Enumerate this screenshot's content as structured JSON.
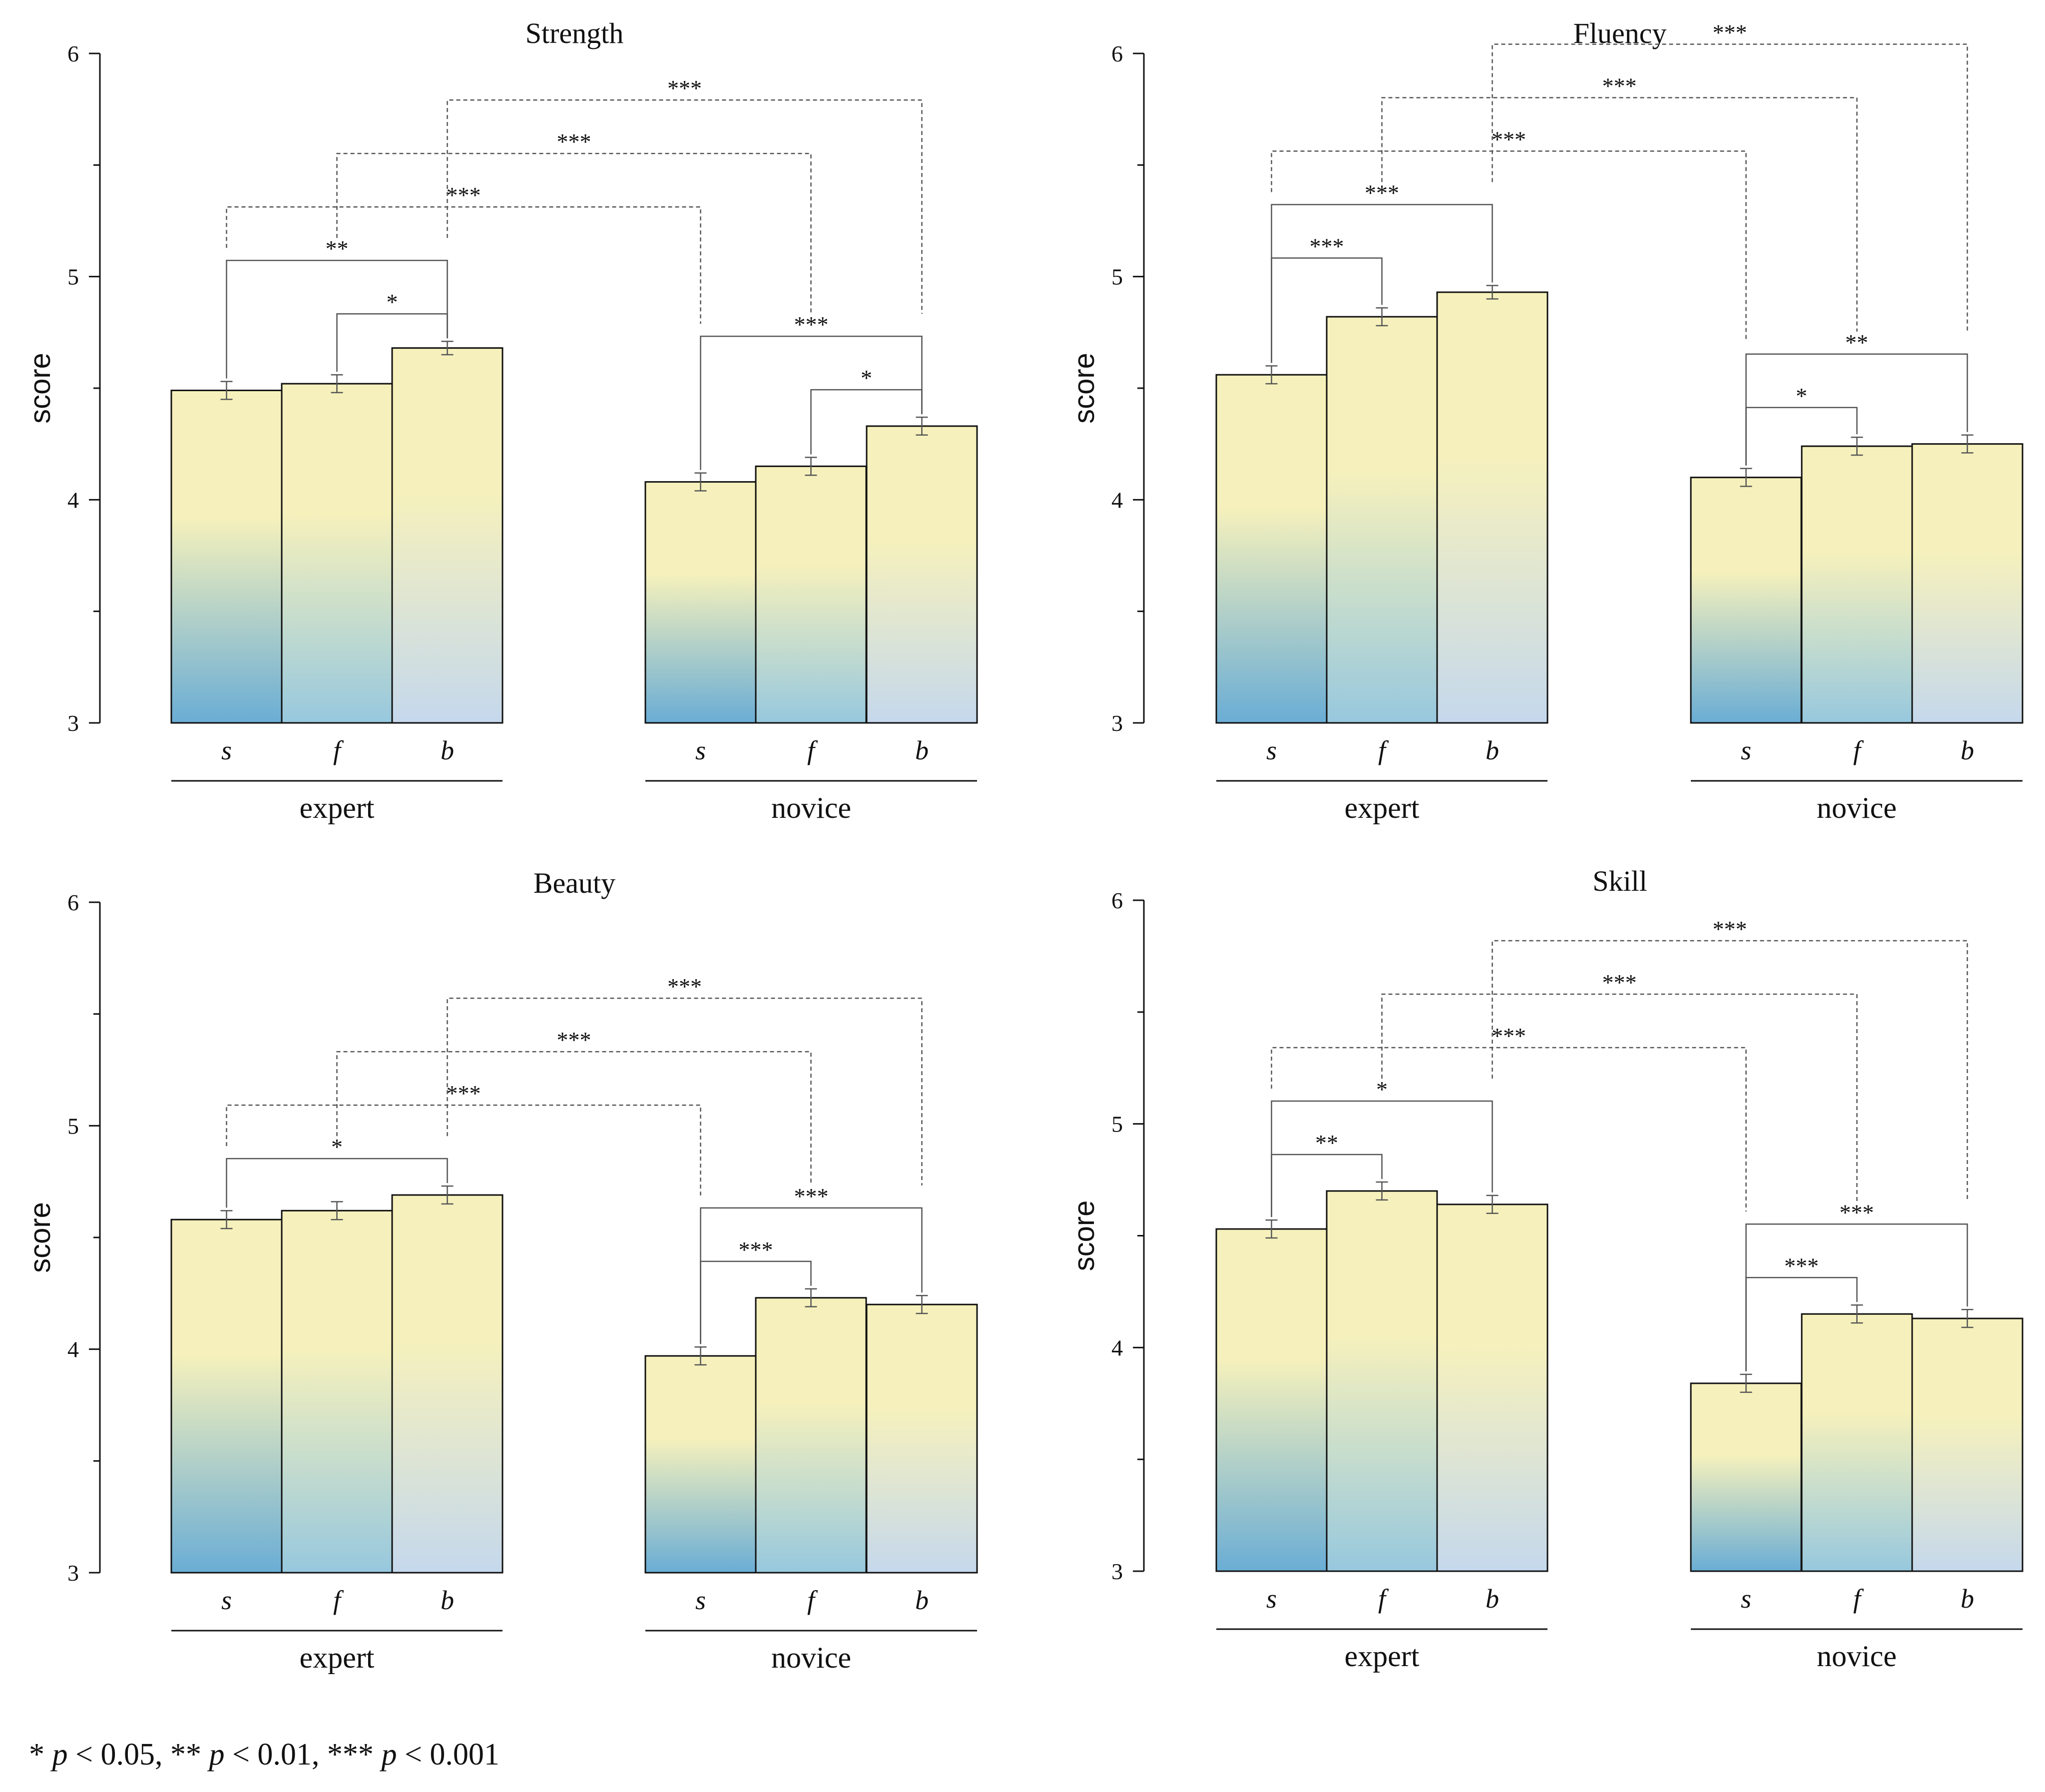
{
  "colors": {
    "bar_top": "#f6f1bc",
    "bar_s_bottom": "#6aadd5",
    "bar_f_bottom": "#97c8de",
    "bar_b_bottom": "#c5d8ec",
    "axis": "#111111",
    "bracket": "#555555"
  },
  "footnote": {
    "s1": "* ",
    "p1": "p",
    "t1": " < 0.05, ** ",
    "p2": "p",
    "t2": " < 0.01, *** ",
    "p3": "p",
    "t3": " < 0.001"
  },
  "chart_data": [
    {
      "type": "bar",
      "title": "Strength",
      "ylabel": "score",
      "ylim": [
        3,
        6
      ],
      "yticks": [
        "3",
        "4",
        "5",
        "6"
      ],
      "categories": [
        "s",
        "f",
        "b"
      ],
      "groups": [
        "expert",
        "novice"
      ],
      "series": [
        {
          "name": "expert",
          "values": [
            4.49,
            4.52,
            4.68
          ],
          "errors": [
            0.04,
            0.04,
            0.03
          ]
        },
        {
          "name": "novice",
          "values": [
            4.08,
            4.15,
            4.33
          ],
          "errors": [
            0.04,
            0.04,
            0.04
          ]
        }
      ],
      "comparisons": [
        {
          "from": [
            0,
            0
          ],
          "to": [
            0,
            2
          ],
          "label": "**",
          "style": "solid"
        },
        {
          "from": [
            0,
            1
          ],
          "to": [
            0,
            2
          ],
          "label": "*",
          "style": "solid"
        },
        {
          "from": [
            1,
            0
          ],
          "to": [
            1,
            2
          ],
          "label": "***",
          "style": "solid"
        },
        {
          "from": [
            1,
            1
          ],
          "to": [
            1,
            2
          ],
          "label": "*",
          "style": "solid"
        },
        {
          "from": [
            0,
            0
          ],
          "to": [
            1,
            0
          ],
          "label": "***",
          "style": "dashed"
        },
        {
          "from": [
            0,
            1
          ],
          "to": [
            1,
            1
          ],
          "label": "***",
          "style": "dashed"
        },
        {
          "from": [
            0,
            2
          ],
          "to": [
            1,
            2
          ],
          "label": "***",
          "style": "dashed"
        }
      ]
    },
    {
      "type": "bar",
      "title": "Fluency",
      "ylabel": "score",
      "ylim": [
        3,
        6
      ],
      "yticks": [
        "3",
        "4",
        "5",
        "6"
      ],
      "categories": [
        "s",
        "f",
        "b"
      ],
      "groups": [
        "expert",
        "novice"
      ],
      "series": [
        {
          "name": "expert",
          "values": [
            4.56,
            4.82,
            4.93
          ],
          "errors": [
            0.04,
            0.04,
            0.03
          ]
        },
        {
          "name": "novice",
          "values": [
            4.1,
            4.24,
            4.25
          ],
          "errors": [
            0.04,
            0.04,
            0.04
          ]
        }
      ],
      "comparisons": [
        {
          "from": [
            0,
            0
          ],
          "to": [
            0,
            1
          ],
          "label": "***",
          "style": "solid"
        },
        {
          "from": [
            0,
            0
          ],
          "to": [
            0,
            2
          ],
          "label": "***",
          "style": "solid"
        },
        {
          "from": [
            1,
            0
          ],
          "to": [
            1,
            1
          ],
          "label": "*",
          "style": "solid"
        },
        {
          "from": [
            1,
            0
          ],
          "to": [
            1,
            2
          ],
          "label": "**",
          "style": "solid"
        },
        {
          "from": [
            0,
            0
          ],
          "to": [
            1,
            0
          ],
          "label": "***",
          "style": "dashed"
        },
        {
          "from": [
            0,
            1
          ],
          "to": [
            1,
            1
          ],
          "label": "***",
          "style": "dashed"
        },
        {
          "from": [
            0,
            2
          ],
          "to": [
            1,
            2
          ],
          "label": "***",
          "style": "dashed"
        }
      ]
    },
    {
      "type": "bar",
      "title": "Beauty",
      "ylabel": "score",
      "ylim": [
        3,
        6
      ],
      "yticks": [
        "3",
        "4",
        "5",
        "6"
      ],
      "categories": [
        "s",
        "f",
        "b"
      ],
      "groups": [
        "expert",
        "novice"
      ],
      "series": [
        {
          "name": "expert",
          "values": [
            4.58,
            4.62,
            4.69
          ],
          "errors": [
            0.04,
            0.04,
            0.04
          ]
        },
        {
          "name": "novice",
          "values": [
            3.97,
            4.23,
            4.2
          ],
          "errors": [
            0.04,
            0.04,
            0.04
          ]
        }
      ],
      "comparisons": [
        {
          "from": [
            0,
            0
          ],
          "to": [
            0,
            2
          ],
          "label": "*",
          "style": "solid"
        },
        {
          "from": [
            1,
            0
          ],
          "to": [
            1,
            1
          ],
          "label": "***",
          "style": "solid"
        },
        {
          "from": [
            1,
            0
          ],
          "to": [
            1,
            2
          ],
          "label": "***",
          "style": "solid"
        },
        {
          "from": [
            0,
            0
          ],
          "to": [
            1,
            0
          ],
          "label": "***",
          "style": "dashed"
        },
        {
          "from": [
            0,
            1
          ],
          "to": [
            1,
            1
          ],
          "label": "***",
          "style": "dashed"
        },
        {
          "from": [
            0,
            2
          ],
          "to": [
            1,
            2
          ],
          "label": "***",
          "style": "dashed"
        }
      ]
    },
    {
      "type": "bar",
      "title": "Skill",
      "ylabel": "score",
      "ylim": [
        3,
        6
      ],
      "yticks": [
        "3",
        "4",
        "5",
        "6"
      ],
      "categories": [
        "s",
        "f",
        "b"
      ],
      "groups": [
        "expert",
        "novice"
      ],
      "series": [
        {
          "name": "expert",
          "values": [
            4.53,
            4.7,
            4.64
          ],
          "errors": [
            0.04,
            0.04,
            0.04
          ]
        },
        {
          "name": "novice",
          "values": [
            3.84,
            4.15,
            4.13
          ],
          "errors": [
            0.04,
            0.04,
            0.04
          ]
        }
      ],
      "comparisons": [
        {
          "from": [
            0,
            0
          ],
          "to": [
            0,
            1
          ],
          "label": "**",
          "style": "solid"
        },
        {
          "from": [
            0,
            0
          ],
          "to": [
            0,
            2
          ],
          "label": "*",
          "style": "solid"
        },
        {
          "from": [
            1,
            0
          ],
          "to": [
            1,
            1
          ],
          "label": "***",
          "style": "solid"
        },
        {
          "from": [
            1,
            0
          ],
          "to": [
            1,
            2
          ],
          "label": "***",
          "style": "solid"
        },
        {
          "from": [
            0,
            0
          ],
          "to": [
            1,
            0
          ],
          "label": "***",
          "style": "dashed"
        },
        {
          "from": [
            0,
            1
          ],
          "to": [
            1,
            1
          ],
          "label": "***",
          "style": "dashed"
        },
        {
          "from": [
            0,
            2
          ],
          "to": [
            1,
            2
          ],
          "label": "***",
          "style": "dashed"
        }
      ]
    }
  ]
}
